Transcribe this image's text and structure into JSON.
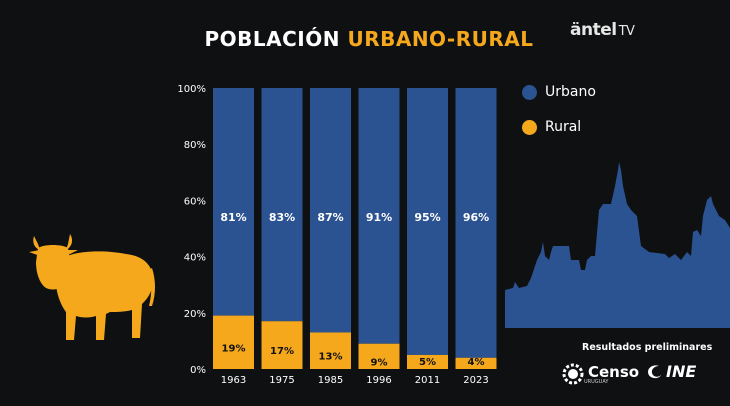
{
  "title_part1": "POBLACIÓN",
  "title_part2": "URBANO-RURAL",
  "brand": {
    "name": "äntel",
    "suffix": "TV"
  },
  "colors": {
    "urbano": "#2b5391",
    "rural": "#f5a81c",
    "background": "#0e1012"
  },
  "footer": {
    "resultados": "Resultados preliminares",
    "censo_logo": "Censo",
    "censo_sub": "URUGUAY",
    "ine_logo": "INE"
  },
  "icons": {
    "cow": "cow-icon",
    "city": "city-skyline"
  },
  "chart_data": {
    "type": "bar",
    "stacked": true,
    "categories": [
      "1963",
      "1975",
      "1985",
      "1996",
      "2011",
      "2023"
    ],
    "series": [
      {
        "name": "Urbano",
        "values": [
          81,
          83,
          87,
          91,
          95,
          96
        ],
        "labels": [
          "81%",
          "83%",
          "87%",
          "91%",
          "95%",
          "96%"
        ]
      },
      {
        "name": "Rural",
        "values": [
          19,
          17,
          13,
          9,
          5,
          4
        ],
        "labels": [
          "19%",
          "17%",
          "13%",
          "9%",
          "5%",
          "4%"
        ]
      }
    ],
    "yticks": [
      "0%",
      "20%",
      "40%",
      "60%",
      "80%",
      "100%"
    ],
    "ylim": [
      0,
      100
    ],
    "legend_position": "right",
    "grid": false
  }
}
